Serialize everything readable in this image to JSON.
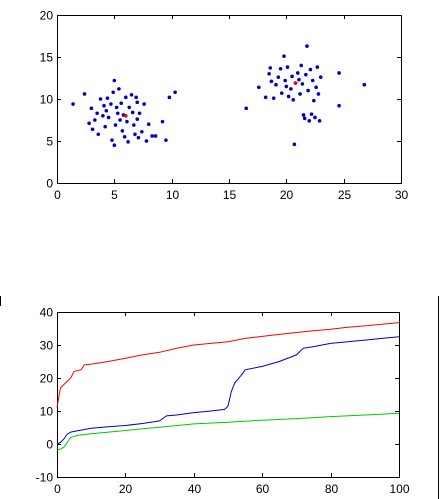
{
  "chart_data": [
    {
      "type": "scatter",
      "title": "",
      "xlabel": "",
      "ylabel": "",
      "xlim": [
        0,
        30
      ],
      "ylim": [
        0,
        20
      ],
      "xticks": [
        0,
        5,
        10,
        15,
        20,
        25,
        30
      ],
      "yticks": [
        0,
        5,
        10,
        15,
        20
      ],
      "grid": false,
      "series": [
        {
          "color": "#0000cc",
          "points": [
            [
              1.4,
              9.4
            ],
            [
              2.4,
              10.6
            ],
            [
              2.8,
              7.1
            ],
            [
              3.0,
              8.9
            ],
            [
              3.1,
              6.4
            ],
            [
              3.3,
              7.5
            ],
            [
              3.5,
              8.3
            ],
            [
              3.6,
              5.8
            ],
            [
              3.8,
              10.0
            ],
            [
              4.0,
              8.0
            ],
            [
              4.1,
              9.2
            ],
            [
              4.2,
              6.7
            ],
            [
              4.3,
              8.6
            ],
            [
              4.4,
              10.1
            ],
            [
              4.5,
              7.8
            ],
            [
              4.7,
              9.4
            ],
            [
              4.8,
              5.1
            ],
            [
              4.9,
              10.8
            ],
            [
              5.0,
              12.2
            ],
            [
              5.0,
              4.5
            ],
            [
              5.1,
              6.9
            ],
            [
              5.2,
              9.0
            ],
            [
              5.3,
              8.3
            ],
            [
              5.4,
              11.2
            ],
            [
              5.5,
              7.5
            ],
            [
              5.6,
              9.5
            ],
            [
              5.7,
              6.2
            ],
            [
              5.8,
              8.1
            ],
            [
              5.9,
              5.5
            ],
            [
              6.0,
              10.2
            ],
            [
              6.1,
              7.3
            ],
            [
              6.2,
              4.9
            ],
            [
              6.3,
              9.0
            ],
            [
              6.5,
              10.5
            ],
            [
              6.6,
              8.4
            ],
            [
              6.7,
              6.9
            ],
            [
              6.8,
              5.8
            ],
            [
              6.9,
              10.2
            ],
            [
              7.0,
              9.6
            ],
            [
              7.0,
              7.6
            ],
            [
              7.1,
              5.4
            ],
            [
              7.2,
              8.3
            ],
            [
              7.4,
              6.1
            ],
            [
              7.6,
              9.4
            ],
            [
              7.8,
              5.0
            ],
            [
              8.0,
              7.0
            ],
            [
              8.3,
              5.6
            ],
            [
              8.6,
              5.6
            ],
            [
              9.2,
              7.3
            ],
            [
              9.5,
              5.1
            ],
            [
              9.8,
              10.2
            ],
            [
              10.3,
              10.8
            ]
          ]
        },
        {
          "color": "#0000cc",
          "points": [
            [
              16.5,
              8.9
            ],
            [
              17.6,
              11.4
            ],
            [
              18.2,
              10.2
            ],
            [
              18.5,
              13.0
            ],
            [
              18.6,
              13.7
            ],
            [
              18.7,
              12.1
            ],
            [
              18.9,
              10.1
            ],
            [
              19.1,
              11.7
            ],
            [
              19.3,
              12.6
            ],
            [
              19.5,
              13.6
            ],
            [
              19.6,
              10.7
            ],
            [
              19.8,
              15.1
            ],
            [
              19.9,
              12.2
            ],
            [
              20.0,
              11.5
            ],
            [
              20.1,
              13.8
            ],
            [
              20.2,
              10.3
            ],
            [
              20.4,
              11.2
            ],
            [
              20.5,
              12.7
            ],
            [
              20.6,
              9.9
            ],
            [
              20.7,
              4.6
            ],
            [
              20.8,
              11.9
            ],
            [
              21.0,
              13.1
            ],
            [
              21.1,
              12.3
            ],
            [
              21.2,
              10.6
            ],
            [
              21.3,
              14.0
            ],
            [
              21.4,
              11.8
            ],
            [
              21.5,
              8.1
            ],
            [
              21.6,
              7.7
            ],
            [
              21.7,
              12.9
            ],
            [
              21.8,
              16.3
            ],
            [
              21.9,
              11.0
            ],
            [
              22.0,
              7.4
            ],
            [
              22.1,
              13.5
            ],
            [
              22.2,
              8.2
            ],
            [
              22.3,
              12.2
            ],
            [
              22.4,
              9.8
            ],
            [
              22.5,
              7.8
            ],
            [
              22.6,
              11.4
            ],
            [
              22.7,
              13.8
            ],
            [
              22.8,
              10.6
            ],
            [
              22.9,
              7.4
            ],
            [
              23.0,
              12.6
            ],
            [
              24.6,
              13.1
            ],
            [
              24.6,
              9.2
            ],
            [
              26.8,
              11.7
            ]
          ]
        },
        {
          "color": "#ff0000",
          "points": [
            [
              6.0,
              8.0
            ],
            [
              20.8,
              11.9
            ]
          ]
        }
      ]
    },
    {
      "type": "line",
      "title": "",
      "xlabel": "",
      "ylabel": "",
      "xlim": [
        0,
        100
      ],
      "ylim": [
        -10,
        40
      ],
      "xticks": [
        0,
        20,
        40,
        60,
        80,
        100
      ],
      "yticks": [
        -10,
        0,
        10,
        20,
        30,
        40
      ],
      "grid": false,
      "series": [
        {
          "color": "#ff0000",
          "points": [
            [
              0,
              11
            ],
            [
              1,
              17
            ],
            [
              2,
              18
            ],
            [
              3,
              19
            ],
            [
              4,
              20
            ],
            [
              5,
              22
            ],
            [
              7,
              22.5
            ],
            [
              8,
              24
            ],
            [
              10,
              24.2
            ],
            [
              12,
              24.5
            ],
            [
              15,
              25
            ],
            [
              20,
              26
            ],
            [
              25,
              27
            ],
            [
              30,
              27.8
            ],
            [
              35,
              29
            ],
            [
              40,
              30
            ],
            [
              45,
              30.5
            ],
            [
              50,
              31
            ],
            [
              55,
              32
            ],
            [
              60,
              32.6
            ],
            [
              65,
              33.2
            ],
            [
              70,
              33.8
            ],
            [
              75,
              34.3
            ],
            [
              80,
              34.8
            ],
            [
              85,
              35.4
            ],
            [
              90,
              35.8
            ],
            [
              95,
              36.3
            ],
            [
              100,
              36.8
            ]
          ]
        },
        {
          "color": "#0000cc",
          "points": [
            [
              0,
              0
            ],
            [
              1,
              0.5
            ],
            [
              2,
              1.5
            ],
            [
              3,
              3
            ],
            [
              4,
              3.6
            ],
            [
              6,
              4
            ],
            [
              10,
              4.8
            ],
            [
              15,
              5.2
            ],
            [
              20,
              5.6
            ],
            [
              25,
              6.2
            ],
            [
              30,
              7
            ],
            [
              32,
              8.5
            ],
            [
              35,
              8.8
            ],
            [
              40,
              9.5
            ],
            [
              45,
              10
            ],
            [
              49,
              10.5
            ],
            [
              50,
              11.5
            ],
            [
              51,
              16
            ],
            [
              52,
              18.5
            ],
            [
              54,
              21
            ],
            [
              55,
              22.5
            ],
            [
              60,
              23.5
            ],
            [
              65,
              25
            ],
            [
              70,
              27
            ],
            [
              72,
              29
            ],
            [
              75,
              29.5
            ],
            [
              80,
              30.5
            ],
            [
              85,
              31
            ],
            [
              90,
              31.5
            ],
            [
              95,
              32
            ],
            [
              100,
              32.5
            ]
          ]
        },
        {
          "color": "#00cc00",
          "points": [
            [
              0,
              -2
            ],
            [
              2,
              -1
            ],
            [
              4,
              2
            ],
            [
              6,
              2.6
            ],
            [
              10,
              3.1
            ],
            [
              15,
              3.6
            ],
            [
              20,
              4.1
            ],
            [
              25,
              4.6
            ],
            [
              30,
              5.1
            ],
            [
              40,
              6.1
            ],
            [
              50,
              6.6
            ],
            [
              60,
              7.2
            ],
            [
              70,
              7.7
            ],
            [
              80,
              8.3
            ],
            [
              90,
              8.8
            ],
            [
              100,
              9.3
            ]
          ]
        }
      ]
    }
  ]
}
